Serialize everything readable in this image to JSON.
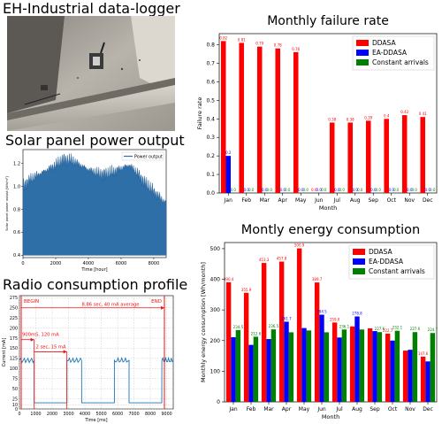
{
  "photo": {
    "title": "EH-Industrial data-logger"
  },
  "solar": {
    "title": "Solar panel power output",
    "chart_data": {
      "type": "area",
      "legend": [
        "Power output"
      ],
      "xlabel": "Time [hour]",
      "ylabel": "Solar panel power output [Wh/m³]",
      "xticks": [
        "0",
        "2000",
        "4000",
        "6000",
        "8000"
      ],
      "yticks": [
        "0.4",
        "0.6",
        "0.8",
        "1.0",
        "1.2"
      ],
      "xlim": [
        0,
        8760
      ],
      "ylim": [
        0.38,
        1.32
      ],
      "envelope_hours": [
        0,
        500,
        1000,
        1500,
        2000,
        2500,
        3000,
        3500,
        4000,
        4500,
        5000,
        5500,
        6000,
        6500,
        7000,
        7500,
        8000,
        8500,
        8760
      ],
      "envelope_max": [
        1.02,
        1.08,
        1.12,
        1.16,
        1.2,
        1.25,
        1.24,
        1.2,
        1.16,
        1.13,
        1.12,
        1.14,
        1.17,
        1.2,
        1.13,
        1.04,
        0.97,
        0.9,
        0.87
      ],
      "legend_position": "top-right"
    }
  },
  "radio": {
    "title": "Radio consumption profile",
    "chart_data": {
      "type": "line",
      "xlabel": "Time [ms]",
      "ylabel": "Current [mA]",
      "xticks": [
        "0",
        "1000",
        "2000",
        "3000",
        "4000",
        "5000",
        "6000",
        "7000",
        "8000",
        "9000"
      ],
      "yticks": [
        "0",
        "10",
        "25",
        "50",
        "75",
        "100",
        "125",
        "150",
        "175",
        "200",
        "225",
        "250",
        "275"
      ],
      "xlim": [
        0,
        9400
      ],
      "ylim": [
        0,
        280
      ],
      "annotations": {
        "begin": "BEGIN",
        "end": "END",
        "average": "8.86 sec, 40 mA average",
        "burst": "900mS, 120 mA",
        "idle": "2 sec, 15 mA"
      },
      "x": [
        0,
        900,
        901,
        2900,
        2901,
        3800,
        3801,
        5800,
        5801,
        6700,
        6701,
        8700,
        8701,
        9400
      ],
      "y": [
        120,
        120,
        15,
        15,
        120,
        120,
        15,
        15,
        120,
        120,
        15,
        15,
        120,
        120
      ]
    }
  },
  "failure": {
    "chart_data": {
      "type": "bar",
      "title": "Monthly failure rate",
      "xlabel": "Month",
      "ylabel": "Failure rate",
      "ylim": [
        0,
        0.86
      ],
      "yticks": [
        "0.0",
        "0.1",
        "0.2",
        "0.3",
        "0.4",
        "0.5",
        "0.6",
        "0.7",
        "0.8"
      ],
      "categories": [
        "Jan",
        "Feb",
        "Mar",
        "Apr",
        "May",
        "Jun",
        "Jul",
        "Aug",
        "Sep",
        "Oct",
        "Nov",
        "Dec"
      ],
      "series": [
        {
          "name": "DDASA",
          "color": "#ff0000",
          "values": [
            0.82,
            0.81,
            0.79,
            0.78,
            0.76,
            0.0,
            0.38,
            0.38,
            0.39,
            0.4,
            0.42,
            0.41
          ],
          "labels": [
            "0.82",
            "0.81",
            "0.79",
            "0.78",
            "0.76",
            "0.0",
            "0.38",
            "0.38",
            "0.39",
            "0.4",
            "0.42",
            "0.41"
          ]
        },
        {
          "name": "EA-DDASA",
          "color": "#0000ff",
          "values": [
            0.2,
            0,
            0,
            0,
            0,
            0,
            0,
            0,
            0,
            0,
            0,
            0
          ],
          "labels": [
            "0.2",
            "0.0",
            "0.0",
            "0.0",
            "0.0",
            "0.0",
            "0.0",
            "0.0",
            "0.0",
            "0.0",
            "0.0",
            "0.0"
          ]
        },
        {
          "name": "Constant arrivals",
          "color": "#008000",
          "values": [
            0,
            0,
            0,
            0,
            0,
            0,
            0,
            0,
            0,
            0,
            0,
            0
          ],
          "labels": [
            "0.0",
            "0.0",
            "0.0",
            "0.0",
            "0.0",
            "0.0",
            "0.0",
            "0.0",
            "0.0",
            "0.0",
            "0.0",
            "0.0"
          ]
        }
      ],
      "legend_position": "top-right"
    }
  },
  "energy": {
    "chart_data": {
      "type": "bar",
      "title": "Montly energy consumption",
      "xlabel": "Month",
      "ylabel": "Monthly energy consumption [Wh/month]",
      "ylim": [
        0,
        520
      ],
      "yticks": [
        "0",
        "100",
        "200",
        "300",
        "400",
        "500"
      ],
      "categories": [
        "Jan",
        "Feb",
        "Mar",
        "Apr",
        "May",
        "Jun",
        "Jul",
        "Aug",
        "Sep",
        "Oct",
        "Nov",
        "Dec"
      ],
      "series": [
        {
          "name": "DDASA",
          "color": "#ff0000",
          "values": [
            390.4,
            355.9,
            453.3,
            457.8,
            500.9,
            389.7,
            259.0,
            246.2,
            240.0,
            222.7,
            167.3,
            147.6
          ],
          "labels": [
            "390.4",
            "355.9",
            "453.3",
            "457.8",
            "500.9",
            "389.7",
            "259.0",
            "",
            "",
            "222.7",
            "",
            "147.6"
          ]
        },
        {
          "name": "EA-DDASA",
          "color": "#0000ff",
          "values": [
            211.0,
            186.0,
            205.0,
            261.7,
            240.9,
            284.5,
            210.0,
            278.8,
            231.0,
            200.0,
            170.0,
            132.0
          ],
          "labels": [
            "",
            "",
            "",
            "261.7",
            "",
            "284.5",
            "",
            "278.8",
            "",
            "",
            "",
            ""
          ]
        },
        {
          "name": "Constant arrivals",
          "color": "#008000",
          "values": [
            234.5,
            212.6,
            236.5,
            227.0,
            233.0,
            227.0,
            236.1,
            236.1,
            227.6,
            232.1,
            227.6,
            224.7
          ],
          "labels": [
            "234.5",
            "212.6",
            "236.5",
            "",
            "",
            "",
            "236.1",
            "",
            "227.6",
            "232.1",
            "227.6",
            "224.7"
          ]
        }
      ],
      "legend_position": "top-right"
    }
  }
}
